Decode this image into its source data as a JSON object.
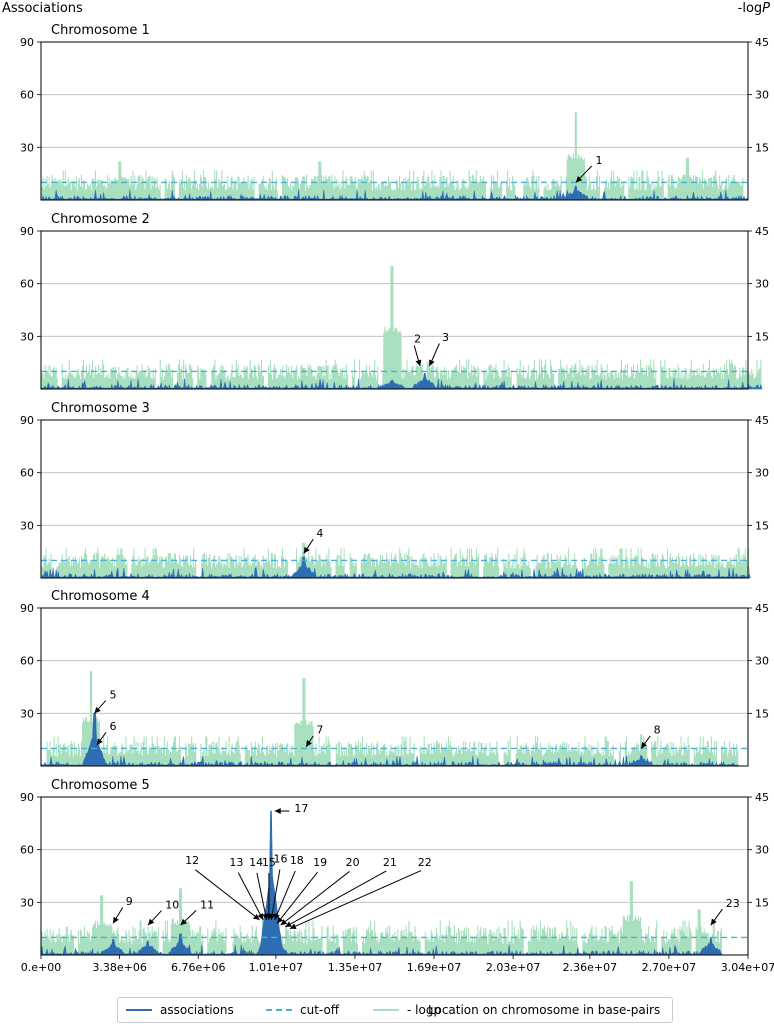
{
  "left_axis_title": "Associations",
  "right_axis_title": "-log",
  "right_axis_title_italic": "P",
  "legend": {
    "associations": "associations",
    "cutoff": "cut-off",
    "logp": "- logp",
    "xlabel": "Location on chromosome in base-pairs"
  },
  "colors": {
    "associations": "#2f6db3",
    "cutoff": "#4ab0d9",
    "logp": "#a8e0bf",
    "grid": "#bbbbbb"
  },
  "chart_data": {
    "type": "line",
    "x_range": [
      0,
      30400000
    ],
    "x_ticks": [
      0,
      3380000,
      6760000,
      10100000,
      13500000,
      16900000,
      20300000,
      23600000,
      27000000,
      30400000
    ],
    "x_tick_labels": [
      "0.e+00",
      "3.38e+06",
      "6.76e+06",
      "1.01e+07",
      "1.35e+07",
      "1.69e+07",
      "2.03e+07",
      "2.36e+07",
      "2.70e+07",
      "3.04e+07"
    ],
    "xlabel": "Location on chromosome in base-pairs",
    "left_ylim": [
      0,
      90
    ],
    "left_ticks": [
      30,
      60,
      90
    ],
    "right_ylim": [
      0,
      45
    ],
    "right_ticks": [
      15,
      30,
      45
    ],
    "cutoff_associations": 10,
    "grid": true,
    "legend_position": "bottom-center",
    "panels": [
      {
        "title": "Chromosome 1",
        "length": 30400000,
        "baseline_logp": 6,
        "logp_peaks": [
          [
            3400000,
            11
          ],
          [
            12000000,
            11
          ],
          [
            23000000,
            25
          ],
          [
            27800000,
            12
          ]
        ],
        "assoc_peaks": [
          [
            23000000,
            8
          ]
        ],
        "annotations": [
          {
            "label": "1",
            "x": 23000000,
            "y": 10,
            "tx": 23800000,
            "ty": 21
          }
        ]
      },
      {
        "title": "Chromosome 2",
        "length": 31000000,
        "baseline_logp": 6,
        "logp_peaks": [
          [
            15100000,
            35
          ],
          [
            16500000,
            13
          ]
        ],
        "assoc_peaks": [
          [
            16500000,
            9
          ],
          [
            15100000,
            5
          ]
        ],
        "annotations": [
          {
            "label": "2",
            "x": 16300000,
            "y": 13,
            "tx": 16000000,
            "ty": 27
          },
          {
            "label": "3",
            "x": 16700000,
            "y": 13,
            "tx": 17200000,
            "ty": 28
          }
        ]
      },
      {
        "title": "Chromosome 3",
        "length": 30500000,
        "baseline_logp": 6,
        "logp_peaks": [
          [
            11300000,
            10
          ]
        ],
        "assoc_peaks": [
          [
            11300000,
            12
          ]
        ],
        "annotations": [
          {
            "label": "4",
            "x": 11300000,
            "y": 14,
            "tx": 11800000,
            "ty": 24
          }
        ]
      },
      {
        "title": "Chromosome 4",
        "length": 30000000,
        "baseline_logp": 6,
        "logp_peaks": [
          [
            2150000,
            27
          ],
          [
            11300000,
            25
          ],
          [
            25800000,
            9
          ]
        ],
        "assoc_peaks": [
          [
            2300000,
            30
          ],
          [
            2350000,
            14
          ],
          [
            25800000,
            6
          ]
        ],
        "annotations": [
          {
            "label": "5",
            "x": 2300000,
            "y": 30,
            "tx": 2900000,
            "ty": 39
          },
          {
            "label": "6",
            "x": 2400000,
            "y": 12,
            "tx": 2900000,
            "ty": 21
          },
          {
            "label": "7",
            "x": 11400000,
            "y": 11,
            "tx": 11800000,
            "ty": 19
          },
          {
            "label": "8",
            "x": 25800000,
            "y": 10,
            "tx": 26300000,
            "ty": 19
          }
        ]
      },
      {
        "title": "Chromosome 5",
        "length": 29300000,
        "baseline_logp": 7,
        "logp_peaks": [
          [
            2600000,
            17
          ],
          [
            6000000,
            19
          ],
          [
            9900000,
            21
          ],
          [
            25400000,
            21
          ],
          [
            28300000,
            13
          ]
        ],
        "assoc_peaks": [
          [
            9900000,
            82
          ],
          [
            9800000,
            20
          ],
          [
            10100000,
            15
          ],
          [
            3100000,
            9
          ],
          [
            4600000,
            8
          ],
          [
            6000000,
            12
          ],
          [
            28800000,
            10
          ]
        ],
        "annotations": [
          {
            "label": "9",
            "x": 3100000,
            "y": 18,
            "tx": 3600000,
            "ty": 29
          },
          {
            "label": "10",
            "x": 4600000,
            "y": 17,
            "tx": 5300000,
            "ty": 27
          },
          {
            "label": "11",
            "x": 6000000,
            "y": 17,
            "tx": 6800000,
            "ty": 27
          },
          {
            "label": "12",
            "x": 9400000,
            "y": 20,
            "tx": 6500000,
            "ty": 50,
            "line": true
          },
          {
            "label": "13",
            "x": 9550000,
            "y": 20,
            "tx": 8400000,
            "ty": 49,
            "line": true
          },
          {
            "label": "14",
            "x": 9700000,
            "y": 20,
            "tx": 9250000,
            "ty": 49,
            "line": true
          },
          {
            "label": "15",
            "x": 9800000,
            "y": 20,
            "tx": 9800000,
            "ty": 49,
            "line": true
          },
          {
            "label": "16",
            "x": 9900000,
            "y": 20,
            "tx": 10300000,
            "ty": 51,
            "line": true
          },
          {
            "label": "17",
            "x": 10050000,
            "y": 82,
            "tx": 10850000,
            "ty": 82
          },
          {
            "label": "18",
            "x": 10050000,
            "y": 20,
            "tx": 11000000,
            "ty": 50,
            "line": true
          },
          {
            "label": "19",
            "x": 10150000,
            "y": 18,
            "tx": 12000000,
            "ty": 49,
            "line": true
          },
          {
            "label": "20",
            "x": 10300000,
            "y": 17,
            "tx": 13400000,
            "ty": 49,
            "line": true
          },
          {
            "label": "21",
            "x": 10500000,
            "y": 16,
            "tx": 15000000,
            "ty": 49,
            "line": true
          },
          {
            "label": "22",
            "x": 10700000,
            "y": 15,
            "tx": 16500000,
            "ty": 49,
            "line": true
          },
          {
            "label": "23",
            "x": 28800000,
            "y": 17,
            "tx": 29400000,
            "ty": 28
          }
        ]
      }
    ]
  }
}
